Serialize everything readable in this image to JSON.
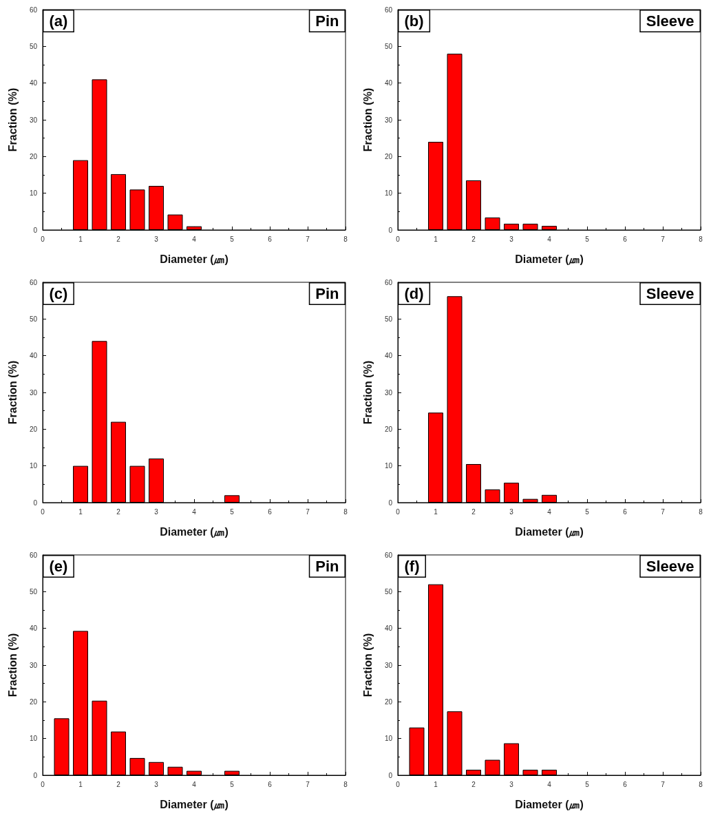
{
  "chart_data": [
    {
      "type": "bar",
      "xlabel": "Diameter (㎛)",
      "ylabel": "Fraction (%)",
      "annotations": [
        "(a)",
        "Pin"
      ],
      "color": "#ff0000",
      "xlim": [
        0,
        8
      ],
      "xticks": [
        0,
        1,
        2,
        3,
        4,
        5,
        6,
        7,
        8
      ],
      "ylim": [
        0,
        60
      ],
      "yticks": [
        0,
        10,
        20,
        30,
        40,
        50,
        60
      ],
      "x": [
        1,
        1.5,
        2,
        2.5,
        3,
        3.5,
        4
      ],
      "values": [
        19,
        41,
        15.2,
        11,
        12,
        4.2,
        1
      ]
    },
    {
      "type": "bar",
      "xlabel": "Diameter (㎛)",
      "ylabel": "Fraction (%)",
      "annotations": [
        "(b)",
        "Sleeve"
      ],
      "color": "#ff0000",
      "xlim": [
        0,
        8
      ],
      "xticks": [
        0,
        1,
        2,
        3,
        4,
        5,
        6,
        7,
        8
      ],
      "ylim": [
        0,
        60
      ],
      "yticks": [
        0,
        10,
        20,
        30,
        40,
        50,
        60
      ],
      "x": [
        1,
        1.5,
        2,
        2.5,
        3,
        3.5,
        4
      ],
      "values": [
        24,
        48,
        13.5,
        3.4,
        1.7,
        1.7,
        1.1
      ]
    },
    {
      "type": "bar",
      "xlabel": "Diameter (㎛)",
      "ylabel": "Fraction (%)",
      "annotations": [
        "(c)",
        "Pin"
      ],
      "color": "#ff0000",
      "xlim": [
        0,
        8
      ],
      "xticks": [
        0,
        1,
        2,
        3,
        4,
        5,
        6,
        7,
        8
      ],
      "ylim": [
        0,
        60
      ],
      "yticks": [
        0,
        10,
        20,
        30,
        40,
        50,
        60
      ],
      "x": [
        1,
        1.5,
        2,
        2.5,
        3,
        5
      ],
      "values": [
        10,
        44,
        22,
        10,
        12,
        2
      ]
    },
    {
      "type": "bar",
      "xlabel": "Diameter (㎛)",
      "ylabel": "Fraction (%)",
      "annotations": [
        "(d)",
        "Sleeve"
      ],
      "color": "#ff0000",
      "xlim": [
        0,
        8
      ],
      "xticks": [
        0,
        1,
        2,
        3,
        4,
        5,
        6,
        7,
        8
      ],
      "ylim": [
        0,
        60
      ],
      "yticks": [
        0,
        10,
        20,
        30,
        40,
        50,
        60
      ],
      "x": [
        1,
        1.5,
        2,
        2.5,
        3,
        3.5,
        4
      ],
      "values": [
        24.5,
        56.2,
        10.5,
        3.6,
        5.4,
        1,
        2.1
      ]
    },
    {
      "type": "bar",
      "xlabel": "Diameter (㎛)",
      "ylabel": "Fraction (%)",
      "annotations": [
        "(e)",
        "Pin"
      ],
      "color": "#ff0000",
      "xlim": [
        0,
        8
      ],
      "xticks": [
        0,
        1,
        2,
        3,
        4,
        5,
        6,
        7,
        8
      ],
      "ylim": [
        0,
        60
      ],
      "yticks": [
        0,
        10,
        20,
        30,
        40,
        50,
        60
      ],
      "x": [
        0.5,
        1,
        1.5,
        2,
        2.5,
        3,
        3.5,
        4,
        5
      ],
      "values": [
        15.5,
        39.3,
        20.3,
        11.9,
        4.7,
        3.6,
        2.3,
        1.2,
        1.2
      ]
    },
    {
      "type": "bar",
      "xlabel": "Diameter (㎛)",
      "ylabel": "Fraction (%)",
      "annotations": [
        "(f)",
        "Sleeve"
      ],
      "color": "#ff0000",
      "xlim": [
        0,
        8
      ],
      "xticks": [
        0,
        1,
        2,
        3,
        4,
        5,
        6,
        7,
        8
      ],
      "ylim": [
        0,
        60
      ],
      "yticks": [
        0,
        10,
        20,
        30,
        40,
        50,
        60
      ],
      "x": [
        0.5,
        1,
        1.5,
        2,
        2.5,
        3,
        3.5,
        4
      ],
      "values": [
        13,
        52,
        17.4,
        1.5,
        4.2,
        8.7,
        1.5,
        1.5
      ]
    }
  ]
}
